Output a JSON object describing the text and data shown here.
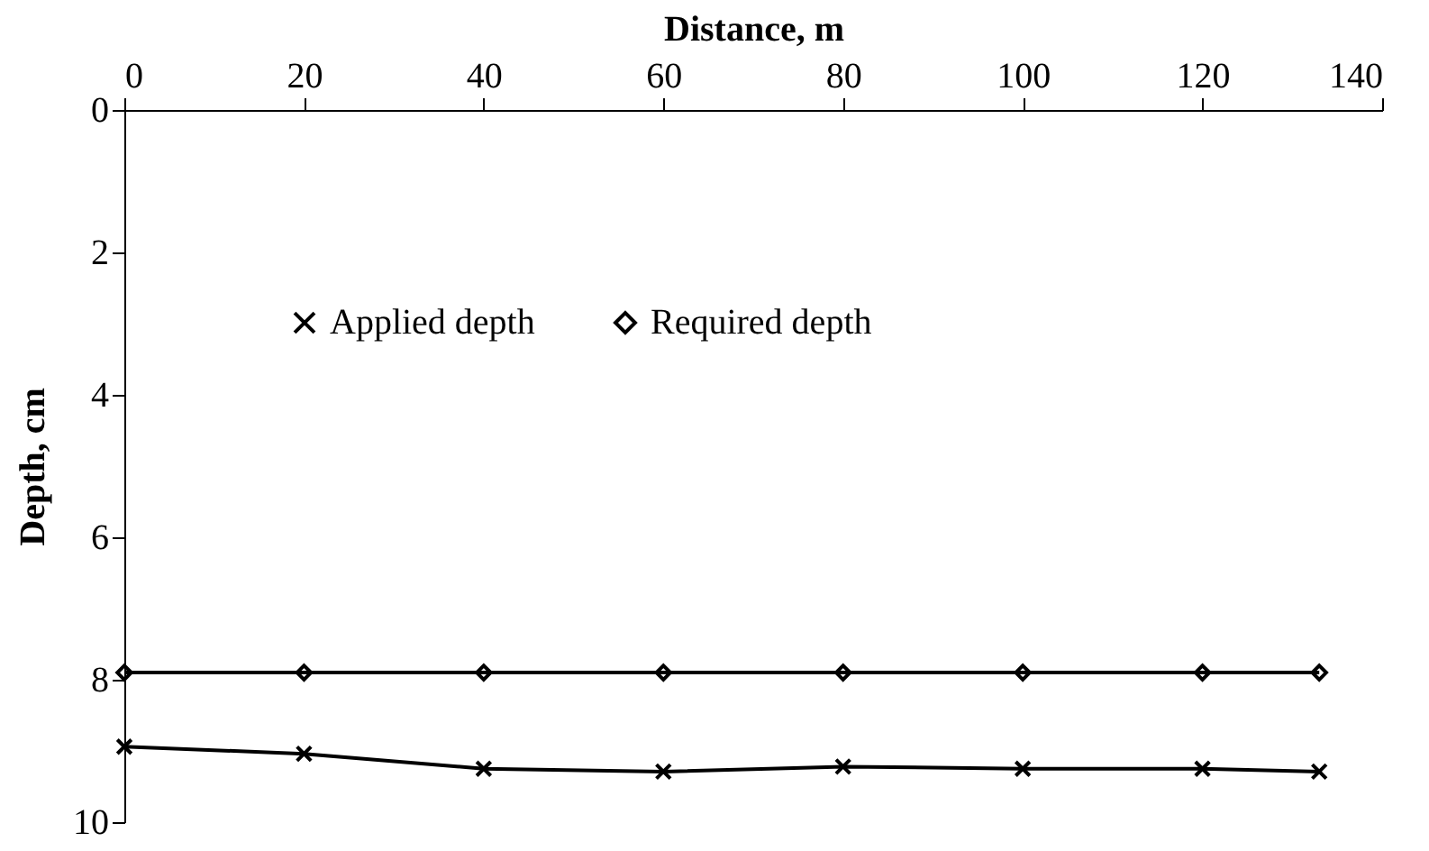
{
  "chart_data": {
    "type": "line",
    "xlabel": "Distance, m",
    "ylabel": "Depth, cm",
    "x": [
      0,
      20,
      40,
      60,
      80,
      100,
      120,
      133
    ],
    "series": [
      {
        "name": "Applied depth",
        "color": "#000000",
        "marker": "cross",
        "values": [
          8.94,
          9.04,
          9.25,
          9.29,
          9.22,
          9.25,
          9.25,
          9.29
        ]
      },
      {
        "name": "Required depth",
        "color": "#000000",
        "marker": "diamond",
        "values": [
          7.9,
          7.9,
          7.9,
          7.9,
          7.9,
          7.9,
          7.9,
          7.9
        ]
      }
    ],
    "xlim": [
      0,
      140
    ],
    "xticks": [
      0,
      20,
      40,
      60,
      80,
      100,
      120,
      140
    ],
    "ylim": [
      10,
      0
    ],
    "yticks": [
      0,
      2,
      4,
      6,
      8,
      10
    ],
    "grid": false,
    "legend": "top"
  }
}
